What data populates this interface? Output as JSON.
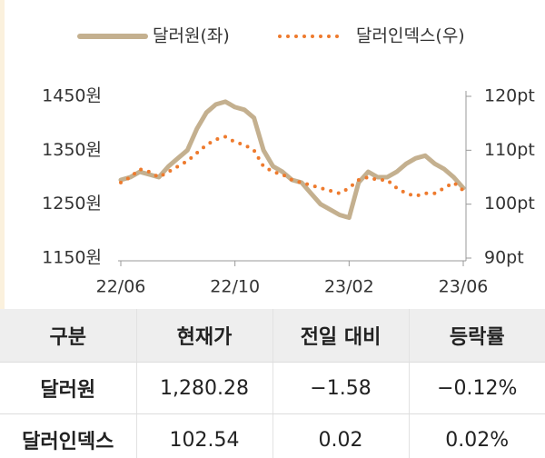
{
  "chart_data": {
    "type": "line",
    "categories": [
      "22/06",
      null,
      null,
      null,
      null,
      null,
      null,
      null,
      null,
      null,
      null,
      null,
      "22/10",
      null,
      null,
      null,
      null,
      null,
      null,
      null,
      null,
      null,
      null,
      null,
      "23/02",
      null,
      null,
      null,
      null,
      null,
      null,
      null,
      null,
      null,
      null,
      null,
      "23/06"
    ],
    "series": [
      {
        "name": "달러원(좌)",
        "color": "#c4b08f",
        "values": [
          1295,
          1300,
          1310,
          1305,
          1300,
          1320,
          1335,
          1350,
          1390,
          1420,
          1435,
          1440,
          1430,
          1425,
          1410,
          1350,
          1320,
          1310,
          1295,
          1290,
          1270,
          1250,
          1240,
          1230,
          1225,
          1290,
          1310,
          1300,
          1300,
          1310,
          1325,
          1335,
          1340,
          1325,
          1315,
          1300,
          1280
        ]
      },
      {
        "name": "달러인덱스(우)",
        "color": "#ee7a2d",
        "axis": "y2",
        "values": [
          104,
          105,
          106.5,
          106,
          105,
          106,
          107,
          108,
          109.5,
          111,
          112,
          112.5,
          111.5,
          111,
          110,
          107,
          106,
          105.5,
          104.5,
          104,
          103.5,
          103,
          102.5,
          102,
          103,
          104.5,
          105,
          104.5,
          104.5,
          103,
          102,
          101.5,
          102,
          102,
          103,
          104,
          102.54
        ]
      }
    ],
    "ylim": [
      1150,
      1450
    ],
    "yticks": [
      {
        "value": 1450,
        "label": "1450원"
      },
      {
        "value": 1350,
        "label": "1350원"
      },
      {
        "value": 1250,
        "label": "1250원"
      },
      {
        "value": 1150,
        "label": "1150원"
      }
    ],
    "y2lim": [
      90,
      120
    ],
    "y2ticks": [
      {
        "value": 120,
        "label": "120pt"
      },
      {
        "value": 110,
        "label": "110pt"
      },
      {
        "value": 100,
        "label": "100pt"
      },
      {
        "value": 90,
        "label": "90pt"
      }
    ],
    "legend": "top"
  },
  "table": {
    "header": [
      "구분",
      "현재가",
      "전일 대비",
      "등락률"
    ],
    "rows": [
      [
        "달러원",
        "1,280.28",
        "−1.58",
        "−0.12%"
      ],
      [
        "달러인덱스",
        "102.54",
        "0.02",
        "0.02%"
      ]
    ]
  }
}
